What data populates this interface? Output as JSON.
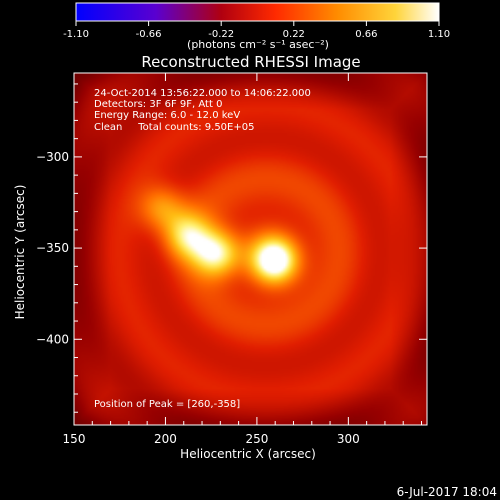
{
  "chart_data": {
    "type": "heatmap",
    "title": "Reconstructed RHESSI Image",
    "xlabel": "Heliocentric X (arcsec)",
    "ylabel": "Heliocentric Y (arcsec)",
    "xlim": [
      150,
      343
    ],
    "ylim": [
      -447,
      -254
    ],
    "x_ticks": [
      150,
      200,
      250,
      300
    ],
    "y_ticks": [
      -300,
      -350,
      -400
    ],
    "colorbar": {
      "label": "(photons cm⁻² s⁻¹ asec⁻²)",
      "min": -1.1,
      "max": 1.1,
      "ticks": [
        "-1.10",
        "-0.66",
        "-0.22",
        "0.22",
        "0.66",
        "1.10"
      ],
      "colormap": [
        "#0000ff",
        "#6a00cc",
        "#b8000a",
        "#ff3000",
        "#ff9000",
        "#ffe040",
        "#ffffff"
      ]
    },
    "annotations": [
      "24-Oct-2014 13:56:22.000 to 14:06:22.000",
      "Detectors: 3F 6F 9F, Att 0",
      "Energy Range: 6.0 - 12.0 keV",
      "Clean     Total counts: 9.50E+05"
    ],
    "peak_label": "Position of Peak = [260,-358]",
    "peak": [
      260,
      -358
    ],
    "sources": [
      {
        "x": 260,
        "y": -357,
        "amplitude": 1.0
      },
      {
        "x": 228,
        "y": -353,
        "amplitude": 0.8
      },
      {
        "x": 212,
        "y": -343,
        "amplitude": 0.62
      },
      {
        "x": 198,
        "y": -328,
        "amplitude": 0.48
      }
    ],
    "background_level": 0.3
  },
  "footer": {
    "date": "6-Jul-2017 18:04"
  }
}
